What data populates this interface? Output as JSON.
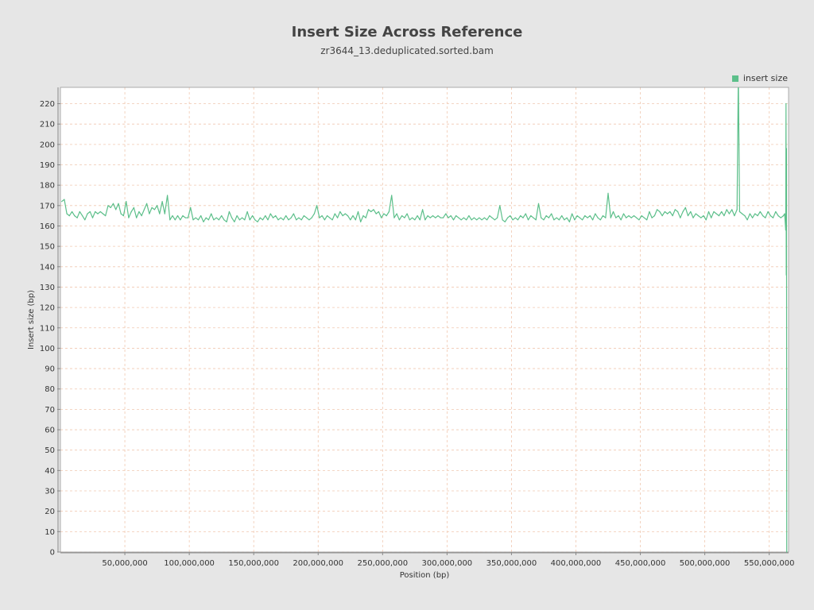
{
  "chart_data": {
    "type": "line",
    "title": "Insert Size Across Reference",
    "subtitle": "zr3644_13.deduplicated.sorted.bam",
    "xlabel": "Position (bp)",
    "ylabel": "Insert size (bp)",
    "xlim": [
      0,
      565000000
    ],
    "ylim": [
      0,
      228
    ],
    "x_ticks": [
      50000000,
      100000000,
      150000000,
      200000000,
      250000000,
      300000000,
      350000000,
      400000000,
      450000000,
      500000000,
      550000000
    ],
    "x_tick_labels": [
      "50,000,000",
      "100,000,000",
      "150,000,000",
      "200,000,000",
      "250,000,000",
      "300,000,000",
      "350,000,000",
      "400,000,000",
      "450,000,000",
      "500,000,000",
      "550,000,000"
    ],
    "y_ticks": [
      0,
      10,
      20,
      30,
      40,
      50,
      60,
      70,
      80,
      90,
      100,
      110,
      120,
      130,
      140,
      150,
      160,
      170,
      180,
      190,
      200,
      210,
      220
    ],
    "grid": true,
    "legend_position": "top-right",
    "colors": {
      "series": "#5cbf8a",
      "grid": "#f0c8b0",
      "plot_bg": "#ffffff",
      "page_bg": "#e6e6e6"
    },
    "series": [
      {
        "name": "insert size",
        "points": [
          [
            1000000,
            172
          ],
          [
            3000000,
            173
          ],
          [
            5000000,
            166
          ],
          [
            7000000,
            165
          ],
          [
            9000000,
            167
          ],
          [
            11000000,
            165
          ],
          [
            13000000,
            164
          ],
          [
            15000000,
            167
          ],
          [
            17000000,
            165
          ],
          [
            19000000,
            163
          ],
          [
            21000000,
            166
          ],
          [
            23000000,
            167
          ],
          [
            25000000,
            164
          ],
          [
            27000000,
            167
          ],
          [
            29000000,
            166
          ],
          [
            31000000,
            167
          ],
          [
            33000000,
            166
          ],
          [
            35000000,
            165
          ],
          [
            37000000,
            170
          ],
          [
            39000000,
            169
          ],
          [
            41000000,
            171
          ],
          [
            43000000,
            168
          ],
          [
            45000000,
            171
          ],
          [
            47000000,
            166
          ],
          [
            49000000,
            165
          ],
          [
            51000000,
            172
          ],
          [
            53000000,
            164
          ],
          [
            55000000,
            167
          ],
          [
            57000000,
            169
          ],
          [
            59000000,
            164
          ],
          [
            61000000,
            167
          ],
          [
            63000000,
            165
          ],
          [
            65000000,
            168
          ],
          [
            67000000,
            171
          ],
          [
            69000000,
            166
          ],
          [
            71000000,
            169
          ],
          [
            73000000,
            168
          ],
          [
            75000000,
            170
          ],
          [
            77000000,
            166
          ],
          [
            79000000,
            172
          ],
          [
            81000000,
            166
          ],
          [
            83000000,
            175
          ],
          [
            85000000,
            163
          ],
          [
            87000000,
            165
          ],
          [
            89000000,
            163
          ],
          [
            91000000,
            165
          ],
          [
            93000000,
            163
          ],
          [
            95000000,
            165
          ],
          [
            97000000,
            164
          ],
          [
            99000000,
            164
          ],
          [
            101000000,
            169
          ],
          [
            103000000,
            163
          ],
          [
            105000000,
            164
          ],
          [
            107000000,
            163
          ],
          [
            109000000,
            165
          ],
          [
            111000000,
            162
          ],
          [
            113000000,
            164
          ],
          [
            115000000,
            163
          ],
          [
            117000000,
            166
          ],
          [
            119000000,
            163
          ],
          [
            121000000,
            164
          ],
          [
            123000000,
            163
          ],
          [
            125000000,
            165
          ],
          [
            127000000,
            163
          ],
          [
            129000000,
            162
          ],
          [
            131000000,
            167
          ],
          [
            133000000,
            164
          ],
          [
            135000000,
            162
          ],
          [
            137000000,
            165
          ],
          [
            139000000,
            163
          ],
          [
            141000000,
            164
          ],
          [
            143000000,
            163
          ],
          [
            145000000,
            167
          ],
          [
            147000000,
            163
          ],
          [
            149000000,
            165
          ],
          [
            151000000,
            163
          ],
          [
            153000000,
            162
          ],
          [
            155000000,
            164
          ],
          [
            157000000,
            163
          ],
          [
            159000000,
            165
          ],
          [
            161000000,
            163
          ],
          [
            163000000,
            166
          ],
          [
            165000000,
            164
          ],
          [
            167000000,
            165
          ],
          [
            169000000,
            163
          ],
          [
            171000000,
            164
          ],
          [
            173000000,
            163
          ],
          [
            175000000,
            165
          ],
          [
            177000000,
            163
          ],
          [
            179000000,
            164
          ],
          [
            181000000,
            166
          ],
          [
            183000000,
            163
          ],
          [
            185000000,
            164
          ],
          [
            187000000,
            163
          ],
          [
            189000000,
            165
          ],
          [
            191000000,
            164
          ],
          [
            193000000,
            163
          ],
          [
            195000000,
            164
          ],
          [
            197000000,
            166
          ],
          [
            199000000,
            170
          ],
          [
            201000000,
            164
          ],
          [
            203000000,
            165
          ],
          [
            205000000,
            163
          ],
          [
            207000000,
            165
          ],
          [
            209000000,
            164
          ],
          [
            211000000,
            163
          ],
          [
            213000000,
            166
          ],
          [
            215000000,
            164
          ],
          [
            217000000,
            167
          ],
          [
            219000000,
            165
          ],
          [
            221000000,
            166
          ],
          [
            223000000,
            165
          ],
          [
            225000000,
            163
          ],
          [
            227000000,
            165
          ],
          [
            229000000,
            163
          ],
          [
            231000000,
            167
          ],
          [
            233000000,
            162
          ],
          [
            235000000,
            165
          ],
          [
            237000000,
            164
          ],
          [
            239000000,
            168
          ],
          [
            241000000,
            167
          ],
          [
            243000000,
            168
          ],
          [
            245000000,
            166
          ],
          [
            247000000,
            167
          ],
          [
            249000000,
            164
          ],
          [
            251000000,
            166
          ],
          [
            253000000,
            165
          ],
          [
            255000000,
            167
          ],
          [
            257000000,
            175
          ],
          [
            259000000,
            164
          ],
          [
            261000000,
            166
          ],
          [
            263000000,
            163
          ],
          [
            265000000,
            165
          ],
          [
            267000000,
            164
          ],
          [
            269000000,
            166
          ],
          [
            271000000,
            163
          ],
          [
            273000000,
            164
          ],
          [
            275000000,
            163
          ],
          [
            277000000,
            165
          ],
          [
            279000000,
            163
          ],
          [
            281000000,
            168
          ],
          [
            283000000,
            163
          ],
          [
            285000000,
            165
          ],
          [
            287000000,
            164
          ],
          [
            289000000,
            165
          ],
          [
            291000000,
            164
          ],
          [
            293000000,
            165
          ],
          [
            295000000,
            164
          ],
          [
            297000000,
            164
          ],
          [
            299000000,
            166
          ],
          [
            301000000,
            164
          ],
          [
            303000000,
            165
          ],
          [
            305000000,
            163
          ],
          [
            307000000,
            165
          ],
          [
            309000000,
            164
          ],
          [
            311000000,
            163
          ],
          [
            313000000,
            164
          ],
          [
            315000000,
            163
          ],
          [
            317000000,
            165
          ],
          [
            319000000,
            163
          ],
          [
            321000000,
            164
          ],
          [
            323000000,
            163
          ],
          [
            325000000,
            164
          ],
          [
            327000000,
            163
          ],
          [
            329000000,
            164
          ],
          [
            331000000,
            163
          ],
          [
            333000000,
            165
          ],
          [
            335000000,
            164
          ],
          [
            337000000,
            163
          ],
          [
            339000000,
            164
          ],
          [
            341000000,
            170
          ],
          [
            343000000,
            163
          ],
          [
            345000000,
            162
          ],
          [
            347000000,
            164
          ],
          [
            349000000,
            165
          ],
          [
            351000000,
            163
          ],
          [
            353000000,
            164
          ],
          [
            355000000,
            163
          ],
          [
            357000000,
            165
          ],
          [
            359000000,
            164
          ],
          [
            361000000,
            166
          ],
          [
            363000000,
            163
          ],
          [
            365000000,
            165
          ],
          [
            367000000,
            164
          ],
          [
            369000000,
            163
          ],
          [
            371000000,
            171
          ],
          [
            373000000,
            164
          ],
          [
            375000000,
            163
          ],
          [
            377000000,
            165
          ],
          [
            379000000,
            164
          ],
          [
            381000000,
            166
          ],
          [
            383000000,
            163
          ],
          [
            385000000,
            164
          ],
          [
            387000000,
            163
          ],
          [
            389000000,
            165
          ],
          [
            391000000,
            163
          ],
          [
            393000000,
            164
          ],
          [
            395000000,
            162
          ],
          [
            397000000,
            166
          ],
          [
            399000000,
            163
          ],
          [
            401000000,
            165
          ],
          [
            403000000,
            164
          ],
          [
            405000000,
            163
          ],
          [
            407000000,
            165
          ],
          [
            409000000,
            164
          ],
          [
            411000000,
            165
          ],
          [
            413000000,
            163
          ],
          [
            415000000,
            166
          ],
          [
            417000000,
            164
          ],
          [
            419000000,
            163
          ],
          [
            421000000,
            165
          ],
          [
            423000000,
            164
          ],
          [
            425000000,
            176
          ],
          [
            427000000,
            164
          ],
          [
            429000000,
            167
          ],
          [
            431000000,
            164
          ],
          [
            433000000,
            165
          ],
          [
            435000000,
            163
          ],
          [
            437000000,
            166
          ],
          [
            439000000,
            164
          ],
          [
            441000000,
            165
          ],
          [
            443000000,
            164
          ],
          [
            445000000,
            165
          ],
          [
            447000000,
            164
          ],
          [
            449000000,
            163
          ],
          [
            451000000,
            165
          ],
          [
            453000000,
            164
          ],
          [
            455000000,
            163
          ],
          [
            457000000,
            167
          ],
          [
            459000000,
            164
          ],
          [
            461000000,
            165
          ],
          [
            463000000,
            168
          ],
          [
            465000000,
            167
          ],
          [
            467000000,
            165
          ],
          [
            469000000,
            167
          ],
          [
            471000000,
            166
          ],
          [
            473000000,
            167
          ],
          [
            475000000,
            165
          ],
          [
            477000000,
            168
          ],
          [
            479000000,
            167
          ],
          [
            481000000,
            164
          ],
          [
            483000000,
            167
          ],
          [
            485000000,
            169
          ],
          [
            487000000,
            165
          ],
          [
            489000000,
            167
          ],
          [
            491000000,
            164
          ],
          [
            493000000,
            166
          ],
          [
            495000000,
            165
          ],
          [
            497000000,
            164
          ],
          [
            499000000,
            165
          ],
          [
            501000000,
            163
          ],
          [
            503000000,
            167
          ],
          [
            505000000,
            164
          ],
          [
            507000000,
            167
          ],
          [
            509000000,
            166
          ],
          [
            511000000,
            165
          ],
          [
            513000000,
            167
          ],
          [
            515000000,
            165
          ],
          [
            517000000,
            168
          ],
          [
            519000000,
            166
          ],
          [
            521000000,
            168
          ],
          [
            523000000,
            165
          ],
          [
            525000000,
            168
          ],
          [
            526000000,
            235
          ],
          [
            527000000,
            167
          ],
          [
            529000000,
            166
          ],
          [
            531000000,
            165
          ],
          [
            533000000,
            163
          ],
          [
            535000000,
            166
          ],
          [
            537000000,
            164
          ],
          [
            539000000,
            166
          ],
          [
            541000000,
            165
          ],
          [
            543000000,
            167
          ],
          [
            545000000,
            165
          ],
          [
            547000000,
            164
          ],
          [
            549000000,
            167
          ],
          [
            551000000,
            165
          ],
          [
            553000000,
            164
          ],
          [
            555000000,
            167
          ],
          [
            557000000,
            165
          ],
          [
            559000000,
            164
          ],
          [
            561000000,
            165
          ],
          [
            562000000,
            166
          ],
          [
            562800000,
            158
          ],
          [
            563000000,
            220
          ],
          [
            563200000,
            136
          ],
          [
            563400000,
            198
          ],
          [
            563600000,
            0
          ]
        ]
      }
    ]
  }
}
